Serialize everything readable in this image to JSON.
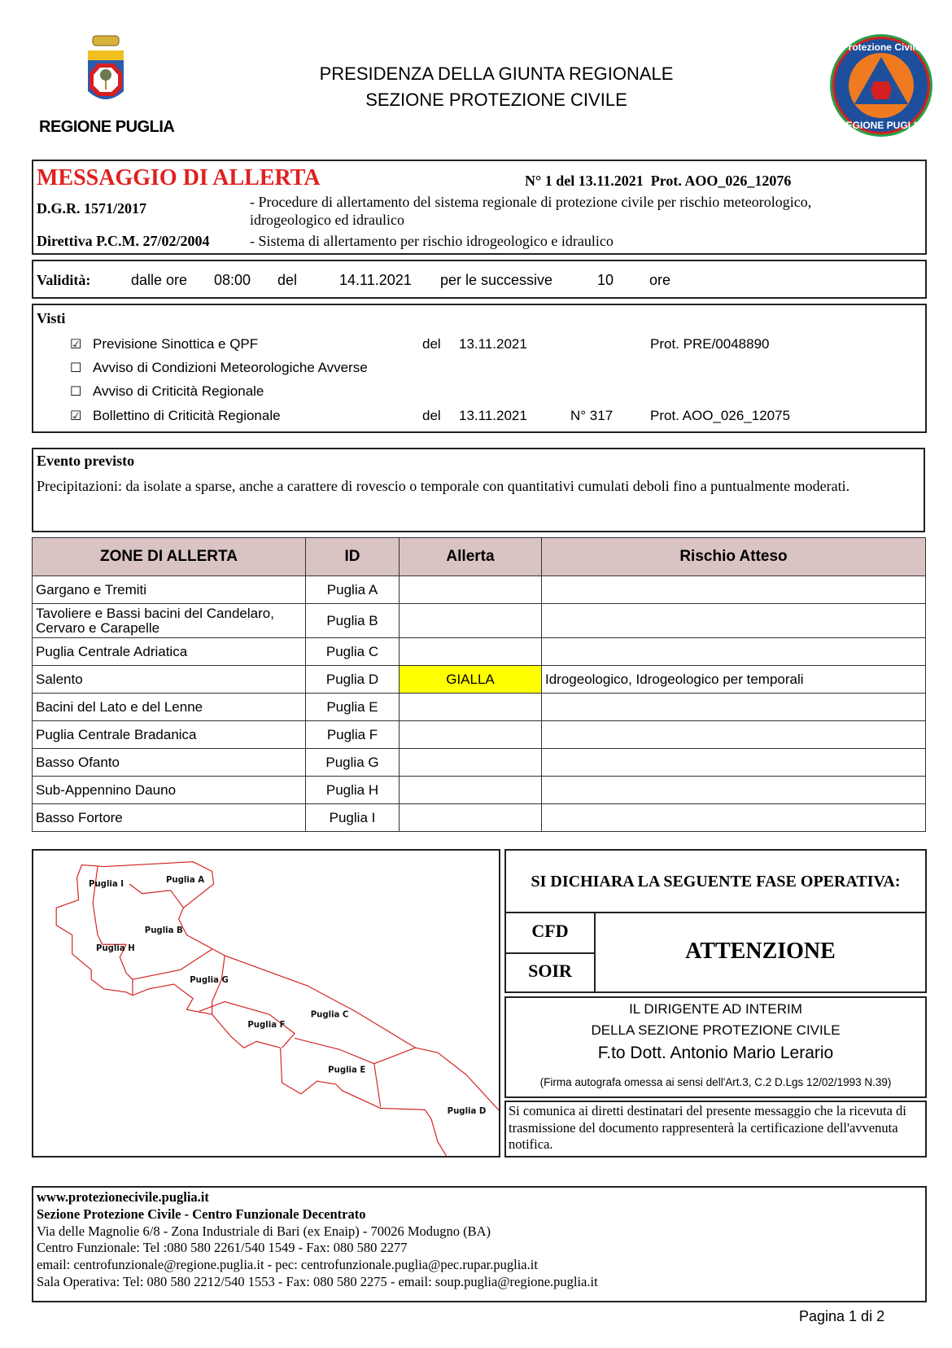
{
  "header": {
    "logo_left_text": "REGIONE PUGLIA",
    "title_line1": "PRESIDENZA DELLA GIUNTA REGIONALE",
    "title_line2": "SEZIONE PROTEZIONE CIVILE",
    "logo_right_text": "Protezione Civile REGIONE PUGLIA"
  },
  "message": {
    "title": "MESSAGGIO DI ALLERTA",
    "number": "N° 1 del 13.11.2021  Prot. AOO_026_12076",
    "dgr_label": "D.G.R. 1571/2017",
    "dgr_text_1": "- Procedure di allertamento del sistema regionale di protezione civile per rischio meteorologico,",
    "dgr_text_2": "idrogeologico ed idraulico",
    "direttiva_label": "Direttiva P.C.M. 27/02/2004",
    "direttiva_text": "- Sistema di allertamento per rischio idrogeologico e idraulico"
  },
  "validita": {
    "label": "Validità:",
    "dalle_ore": "dalle ore",
    "ora": "08:00",
    "del": "del",
    "data": "14.11.2021",
    "successive": "per le successive",
    "ore_num": "10",
    "ore": "ore"
  },
  "visti": {
    "label": "Visti",
    "items": [
      {
        "checked": true,
        "check": "☑",
        "label": "Previsione Sinottica e QPF",
        "del": "del",
        "date": "13.11.2021",
        "num": "",
        "prot": "Prot. PRE/0048890"
      },
      {
        "checked": false,
        "check": "☐",
        "label": "Avviso di Condizioni Meteorologiche Avverse"
      },
      {
        "checked": false,
        "check": "☐",
        "label": "Avviso di Criticità Regionale"
      },
      {
        "checked": true,
        "check": "☑",
        "label": "Bollettino di Criticità Regionale",
        "del": "del",
        "date": "13.11.2021",
        "num": "N° 317",
        "prot": "Prot. AOO_026_12075"
      }
    ]
  },
  "evento": {
    "label": "Evento previsto",
    "text": "Precipitazioni: da isolate a sparse, anche a carattere di rovescio o temporale con quantitativi cumulati deboli fino a puntualmente moderati."
  },
  "zones": {
    "headers": [
      "ZONE DI ALLERTA",
      "ID",
      "Allerta",
      "Rischio Atteso"
    ],
    "highlight_color": "#ffff00",
    "header_color": "#d9c3c3",
    "rows": [
      {
        "zone": "Gargano e Tremiti",
        "id": "Puglia A",
        "allerta": "",
        "rischio": ""
      },
      {
        "zone": "Tavoliere e Bassi bacini del Candelaro, Cervaro e Carapelle",
        "id": "Puglia B",
        "allerta": "",
        "rischio": ""
      },
      {
        "zone": "Puglia Centrale Adriatica",
        "id": "Puglia C",
        "allerta": "",
        "rischio": ""
      },
      {
        "zone": "Salento",
        "id": "Puglia D",
        "allerta": "GIALLA",
        "rischio": "Idrogeologico, Idrogeologico per temporali"
      },
      {
        "zone": "Bacini del Lato e del Lenne",
        "id": "Puglia E",
        "allerta": "",
        "rischio": ""
      },
      {
        "zone": "Puglia Centrale Bradanica",
        "id": "Puglia F",
        "allerta": "",
        "rischio": ""
      },
      {
        "zone": "Basso Ofanto",
        "id": "Puglia G",
        "allerta": "",
        "rischio": ""
      },
      {
        "zone": "Sub-Appennino Dauno",
        "id": "Puglia H",
        "allerta": "",
        "rischio": ""
      },
      {
        "zone": "Basso Fortore",
        "id": "Puglia I",
        "allerta": "",
        "rischio": ""
      }
    ]
  },
  "map": {
    "labels": [
      "Puglia I",
      "Puglia A",
      "Puglia B",
      "Puglia H",
      "Puglia G",
      "Puglia C",
      "Puglia F",
      "Puglia E",
      "Puglia D"
    ],
    "outline_color": "#d42020"
  },
  "fase": {
    "heading": "SI DICHIARA LA SEGUENTE FASE OPERATIVA:",
    "cfd": "CFD",
    "soir": "SOIR",
    "value": "ATTENZIONE"
  },
  "firma": {
    "line1": "IL DIRIGENTE AD INTERIM",
    "line2": "DELLA SEZIONE PROTEZIONE CIVILE",
    "name": "F.to Dott. Antonio Mario Lerario",
    "note": "(Firma autografa omessa ai sensi dell'Art.3, C.2 D.Lgs 12/02/1993 N.39)"
  },
  "notice": "Si comunica ai diretti destinatari del presente messaggio che la ricevuta di trasmissione del documento rappresenterà la certificazione dell'avvenuta notifica.",
  "footer": {
    "website": "www.protezionecivile.puglia.it",
    "section": "Sezione Protezione Civile - Centro Funzionale Decentrato",
    "address": "Via delle Magnolie 6/8 - Zona Industriale di Bari (ex Enaip) - 70026 Modugno (BA)",
    "centro": "Centro Funzionale: Tel :080 580 2261/540 1549 - Fax: 080 580 2277",
    "email": "email: centrofunzionale@regione.puglia.it - pec: centrofunzionale.puglia@pec.rupar.puglia.it",
    "sala": "Sala Operativa: Tel: 080 580 2212/540 1553 - Fax: 080 580 2275 - email: soup.puglia@regione.puglia.it"
  },
  "page": "Pagina 1 di 2"
}
